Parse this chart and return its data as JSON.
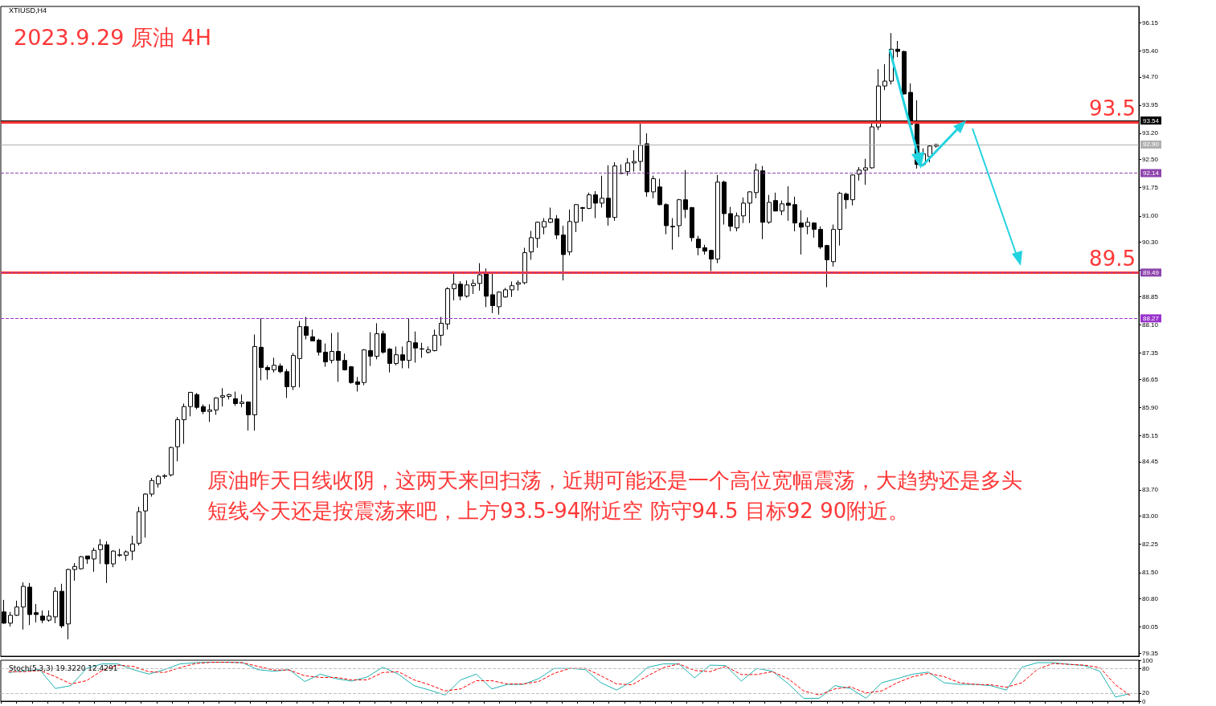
{
  "chart_data": [
    {
      "type": "candlestick",
      "title": "2023.9.29 原油 4H",
      "subtitle": "XTIUSD,H4",
      "annotations": [
        "原油昨天日线收阴，这两天来回扫荡，近期可能还是一个高位宽幅震荡，大趋势还是多头",
        "短线今天还是按震荡来吧，上方93.5-94附近空 防守94.5 目标92 90附近。"
      ],
      "categories": [
        null,
        null,
        null,
        null,
        null,
        null,
        null,
        null,
        null,
        null,
        null,
        null,
        null,
        null,
        null,
        null,
        null,
        null,
        null,
        null,
        null,
        null,
        null,
        null,
        null,
        null,
        null,
        null,
        null,
        null,
        null,
        null,
        null,
        null,
        null,
        null,
        null,
        null,
        null,
        null,
        null,
        null,
        null,
        null,
        null,
        null,
        null,
        null,
        null,
        null,
        null,
        null,
        null,
        null,
        null,
        null,
        null,
        null,
        null,
        null,
        null,
        null,
        null,
        null,
        null,
        null,
        null,
        null,
        null,
        null,
        null,
        null,
        null,
        null,
        null,
        null,
        null,
        null,
        null,
        null,
        null,
        null,
        null,
        null,
        null,
        null,
        null,
        null,
        null,
        null,
        null,
        null,
        null,
        null,
        null,
        null,
        null,
        null,
        null,
        null,
        null,
        null,
        null,
        null,
        null,
        null,
        null,
        null,
        null,
        null,
        null,
        null,
        null,
        null,
        null,
        null,
        null,
        null,
        null,
        null,
        null,
        null,
        null,
        null,
        null,
        null,
        null,
        null,
        null,
        null,
        null,
        null,
        null,
        null,
        null,
        null,
        null,
        null,
        null,
        null,
        null,
        null,
        null,
        null,
        null,
        null,
        null,
        null,
        null,
        null,
        null,
        null,
        null,
        null,
        null,
        null,
        null,
        null,
        null,
        null,
        null,
        null,
        null,
        null,
        null,
        null,
        null,
        null,
        null,
        null,
        null,
        null,
        null,
        null,
        null,
        null,
        null
      ],
      "series": [
        {
          "color": "#000000",
          "ohlc": [
            [
              80.45,
              80.77,
              80.13,
              80.15
            ],
            [
              80.15,
              80.45,
              80.06,
              80.36
            ],
            [
              80.36,
              80.75,
              80.34,
              80.58
            ],
            [
              80.58,
              81.24,
              79.98,
              81.13
            ],
            [
              81.11,
              81.22,
              80.1,
              80.38
            ],
            [
              80.43,
              80.66,
              80.17,
              80.38
            ],
            [
              80.34,
              80.49,
              80.15,
              80.23
            ],
            [
              80.23,
              80.49,
              80.19,
              80.34
            ],
            [
              80.32,
              81.11,
              80.15,
              81.0
            ],
            [
              81.0,
              81.2,
              80.02,
              80.08
            ],
            [
              80.13,
              81.6,
              79.72,
              81.58
            ],
            [
              81.58,
              81.75,
              81.28,
              81.66
            ],
            [
              81.6,
              81.94,
              81.58,
              81.92
            ],
            [
              81.94,
              81.94,
              81.73,
              81.86
            ],
            [
              81.86,
              82.16,
              81.52,
              82.09
            ],
            [
              82.11,
              82.39,
              81.73,
              82.24
            ],
            [
              82.24,
              82.33,
              81.22,
              81.73
            ],
            [
              81.73,
              82.09,
              81.64,
              82.07
            ],
            [
              81.96,
              82.13,
              81.92,
              81.97
            ],
            [
              81.96,
              82.09,
              81.81,
              82.05
            ],
            [
              82.07,
              82.48,
              81.83,
              82.26
            ],
            [
              82.28,
              83.25,
              82.22,
              83.12
            ],
            [
              83.14,
              83.61,
              82.43,
              83.59
            ],
            [
              83.59,
              84.02,
              83.52,
              83.95
            ],
            [
              83.86,
              84.1,
              83.76,
              84.06
            ],
            [
              84.06,
              84.12,
              84.0,
              84.08
            ],
            [
              84.1,
              84.85,
              84.06,
              84.83
            ],
            [
              84.85,
              85.64,
              84.46,
              85.57
            ],
            [
              85.57,
              86.0,
              84.93,
              85.92
            ],
            [
              85.92,
              86.3,
              85.66,
              86.3
            ],
            [
              86.24,
              86.28,
              85.85,
              85.9
            ],
            [
              85.92,
              85.98,
              85.72,
              85.79
            ],
            [
              85.79,
              85.98,
              85.51,
              85.83
            ],
            [
              85.83,
              86.17,
              85.7,
              86.15
            ],
            [
              86.17,
              86.41,
              85.92,
              86.21
            ],
            [
              86.19,
              86.26,
              86.11,
              86.24
            ],
            [
              86.13,
              86.32,
              85.94,
              86.0
            ],
            [
              86.0,
              86.24,
              85.9,
              86.04
            ],
            [
              86.04,
              86.06,
              85.28,
              85.7
            ],
            [
              85.7,
              87.84,
              85.28,
              87.52
            ],
            [
              87.5,
              88.27,
              86.62,
              86.96
            ],
            [
              86.96,
              87.02,
              86.64,
              86.9
            ],
            [
              86.9,
              87.22,
              86.83,
              87.02
            ],
            [
              87.0,
              87.07,
              86.81,
              86.85
            ],
            [
              86.85,
              86.92,
              86.15,
              86.45
            ],
            [
              86.45,
              87.35,
              86.36,
              87.28
            ],
            [
              87.2,
              88.2,
              86.43,
              88.05
            ],
            [
              88.05,
              88.31,
              87.71,
              87.82
            ],
            [
              87.78,
              87.97,
              87.66,
              87.67
            ],
            [
              87.69,
              87.73,
              87.28,
              87.37
            ],
            [
              87.37,
              87.6,
              86.98,
              87.11
            ],
            [
              87.15,
              87.88,
              87.07,
              87.39
            ],
            [
              87.39,
              87.9,
              86.58,
              87.15
            ],
            [
              87.15,
              87.33,
              86.88,
              86.9
            ],
            [
              86.98,
              87.0,
              86.53,
              86.56
            ],
            [
              86.58,
              86.71,
              86.32,
              86.51
            ],
            [
              86.56,
              87.45,
              86.49,
              87.43
            ],
            [
              87.41,
              87.9,
              87.0,
              87.26
            ],
            [
              87.26,
              88.14,
              87.18,
              87.86
            ],
            [
              87.86,
              87.94,
              87.33,
              87.37
            ],
            [
              87.45,
              87.48,
              86.83,
              87.07
            ],
            [
              87.07,
              87.52,
              87.02,
              87.3
            ],
            [
              87.3,
              87.52,
              86.94,
              87.15
            ],
            [
              87.15,
              88.27,
              86.94,
              87.65
            ],
            [
              87.62,
              87.92,
              87.09,
              87.48
            ],
            [
              87.45,
              87.62,
              87.22,
              87.46
            ],
            [
              87.37,
              87.52,
              87.33,
              87.43
            ],
            [
              87.41,
              87.97,
              87.39,
              87.82
            ],
            [
              87.82,
              88.31,
              87.54,
              88.14
            ],
            [
              88.12,
              89.1,
              87.97,
              89.06
            ],
            [
              89.06,
              89.49,
              88.75,
              89.18
            ],
            [
              89.18,
              89.26,
              88.75,
              88.86
            ],
            [
              88.86,
              89.28,
              88.82,
              89.16
            ],
            [
              89.14,
              89.31,
              88.92,
              89.2
            ],
            [
              89.2,
              89.74,
              89.01,
              89.43
            ],
            [
              89.49,
              89.6,
              88.57,
              88.86
            ],
            [
              88.9,
              89.47,
              88.41,
              88.61
            ],
            [
              88.58,
              88.99,
              88.37,
              88.97
            ],
            [
              88.84,
              89.08,
              88.82,
              89.03
            ],
            [
              89.03,
              89.25,
              88.84,
              89.14
            ],
            [
              89.18,
              89.28,
              89.01,
              89.22
            ],
            [
              89.22,
              90.15,
              89.18,
              90.02
            ],
            [
              90.04,
              90.6,
              89.83,
              90.42
            ],
            [
              90.4,
              90.85,
              90.15,
              90.83
            ],
            [
              90.7,
              90.94,
              90.51,
              90.85
            ],
            [
              90.83,
              91.22,
              90.81,
              90.92
            ],
            [
              90.92,
              91.02,
              90.38,
              90.49
            ],
            [
              90.49,
              90.74,
              89.28,
              89.97
            ],
            [
              90.04,
              91.17,
              89.95,
              90.85
            ],
            [
              90.83,
              91.32,
              90.57,
              91.3
            ],
            [
              91.2,
              91.24,
              90.85,
              91.22
            ],
            [
              91.2,
              91.62,
              91.18,
              91.56
            ],
            [
              91.56,
              91.66,
              90.94,
              91.34
            ],
            [
              91.34,
              92.07,
              91.22,
              91.47
            ],
            [
              91.47,
              92.35,
              90.74,
              90.96
            ],
            [
              90.96,
              92.43,
              90.87,
              92.33
            ],
            [
              92.14,
              92.37,
              92.12,
              92.13
            ],
            [
              92.18,
              92.54,
              92.07,
              92.41
            ],
            [
              92.41,
              92.75,
              92.18,
              92.45
            ],
            [
              92.45,
              93.54,
              92.2,
              92.88
            ],
            [
              92.92,
              93.2,
              91.51,
              91.64
            ],
            [
              91.64,
              92.07,
              91.47,
              91.99
            ],
            [
              91.77,
              91.99,
              91.28,
              91.3
            ],
            [
              91.3,
              91.34,
              90.51,
              90.74
            ],
            [
              90.72,
              90.94,
              90.1,
              90.71
            ],
            [
              90.74,
              91.45,
              90.44,
              91.43
            ],
            [
              91.43,
              92.22,
              90.94,
              91.17
            ],
            [
              91.22,
              91.24,
              90.32,
              90.42
            ],
            [
              90.38,
              90.47,
              89.95,
              90.15
            ],
            [
              90.15,
              90.23,
              89.97,
              90.06
            ],
            [
              90.08,
              90.1,
              89.53,
              89.85
            ],
            [
              89.85,
              92.09,
              89.74,
              91.9
            ],
            [
              91.9,
              91.94,
              90.77,
              91.06
            ],
            [
              91.06,
              91.24,
              90.59,
              90.72
            ],
            [
              90.68,
              91.09,
              90.59,
              91.0
            ],
            [
              91.0,
              91.49,
              90.81,
              91.34
            ],
            [
              91.34,
              91.66,
              90.81,
              91.64
            ],
            [
              91.62,
              92.39,
              91.47,
              92.22
            ],
            [
              92.2,
              92.33,
              90.38,
              90.83
            ],
            [
              90.83,
              91.56,
              90.79,
              91.36
            ],
            [
              91.41,
              91.62,
              91.12,
              91.13
            ],
            [
              91.13,
              91.41,
              91.02,
              91.32
            ],
            [
              91.34,
              91.79,
              90.87,
              91.28
            ],
            [
              91.3,
              91.51,
              90.59,
              90.81
            ],
            [
              90.81,
              91.15,
              89.97,
              90.7
            ],
            [
              90.72,
              90.96,
              90.51,
              90.83
            ],
            [
              90.81,
              90.83,
              90.42,
              90.64
            ],
            [
              90.64,
              90.72,
              90.12,
              90.17
            ],
            [
              90.21,
              90.23,
              89.1,
              89.83
            ],
            [
              89.78,
              90.77,
              89.65,
              90.64
            ],
            [
              90.64,
              91.64,
              90.21,
              91.6
            ],
            [
              91.58,
              91.62,
              91.19,
              91.43
            ],
            [
              91.43,
              92.11,
              91.28,
              92.09
            ],
            [
              92.11,
              92.3,
              91.94,
              92.22
            ],
            [
              92.22,
              92.52,
              91.83,
              92.28
            ],
            [
              92.28,
              93.48,
              92.26,
              93.37
            ],
            [
              93.37,
              94.91,
              93.29,
              94.46
            ],
            [
              94.46,
              95.04,
              94.35,
              94.59
            ],
            [
              94.59,
              95.87,
              94.5,
              95.44
            ],
            [
              95.44,
              95.66,
              95.23,
              95.38
            ],
            [
              95.38,
              95.4,
              94.23,
              94.25
            ],
            [
              94.29,
              94.53,
              93.43,
              93.44
            ],
            [
              93.44,
              94.08,
              92.26,
              92.37
            ],
            [
              92.37,
              92.8,
              92.33,
              92.65
            ],
            [
              92.58,
              92.88,
              92.43,
              92.86
            ],
            [
              92.86,
              92.92,
              92.82,
              92.9
            ],
            null,
            null,
            null,
            null,
            null,
            null,
            null,
            null,
            null,
            null,
            null,
            null,
            null,
            null,
            null,
            null,
            null,
            null,
            null,
            null,
            null,
            null,
            null,
            null,
            null,
            null,
            null,
            null,
            null,
            null,
            null
          ]
        }
      ],
      "ylim": [
        79.27,
        96.58
      ],
      "yticks": [
        {
          "value": 79.35,
          "label": "79.35"
        },
        {
          "value": 80.05,
          "label": "80.05"
        },
        {
          "value": 80.8,
          "label": "80.80"
        },
        {
          "value": 81.5,
          "label": "81.50"
        },
        {
          "value": 82.25,
          "label": "82.25"
        },
        {
          "value": 83,
          "label": "83.00"
        },
        {
          "value": 83.7,
          "label": "83.70"
        },
        {
          "value": 84.45,
          "label": "84.45"
        },
        {
          "value": 85.15,
          "label": "85.15"
        },
        {
          "value": 85.9,
          "label": "85.90"
        },
        {
          "value": 86.65,
          "label": "86.65"
        },
        {
          "value": 87.35,
          "label": "87.35"
        },
        {
          "value": 88.1,
          "label": "88.10"
        },
        {
          "value": 88.85,
          "label": "88.85"
        },
        {
          "value": 89.55,
          "label": null
        },
        {
          "value": 90.3,
          "label": "90.30"
        },
        {
          "value": 91,
          "label": "91.00"
        },
        {
          "value": 91.75,
          "label": "91.75"
        },
        {
          "value": 92.5,
          "label": "92.50"
        },
        {
          "value": 93.2,
          "label": "93.20"
        },
        {
          "value": 93.95,
          "label": "93.95"
        },
        {
          "value": 94.7,
          "label": "94.70"
        },
        {
          "value": 95.4,
          "label": "95.40"
        },
        {
          "value": 96.15,
          "label": "96.15"
        }
      ],
      "tick_labels": "y",
      "ref_lines": [
        {
          "axis": "y",
          "value": 93.5,
          "label": "93.5",
          "color": "#ff3838",
          "line_style": "solid"
        },
        {
          "axis": "y",
          "value": 89.5,
          "label": "89.5",
          "color": "#ff3838",
          "line_style": "solid"
        },
        {
          "axis": "y",
          "value": 93.54,
          "label": "93.54",
          "color": "#000000",
          "line_style": "solid"
        },
        {
          "axis": "y",
          "value": 92.9,
          "label": "92.90",
          "color": "#b0b0b0",
          "line_style": "solid"
        },
        {
          "axis": "y",
          "value": 92.14,
          "label": "92.14",
          "color": "#8e44ad",
          "line_style": "dashed"
        },
        {
          "axis": "y",
          "value": 89.49,
          "label": "89.49",
          "color": "#8e44ad",
          "line_style": "dashed"
        },
        {
          "axis": "y",
          "value": 88.27,
          "label": "88.27",
          "color": "#9932cc",
          "line_style": "dashed"
        }
      ]
    },
    {
      "type": "line",
      "title": "Stoch(5,3,3) 19.3220 12.4291",
      "categories": [
        null,
        null,
        null,
        null,
        null,
        null,
        null,
        null,
        null,
        null,
        null,
        null,
        null,
        null,
        null,
        null,
        null,
        null,
        null,
        null,
        null,
        null,
        null,
        null,
        null,
        null,
        null,
        null,
        null,
        null,
        null,
        null,
        null,
        null,
        null,
        null,
        null,
        null,
        null,
        null,
        null,
        null,
        null,
        null,
        null,
        null,
        null,
        null,
        null,
        null,
        null,
        null,
        null,
        null,
        null,
        null,
        null,
        null,
        null,
        null,
        null,
        null,
        null,
        null,
        null,
        null,
        null,
        null,
        null,
        null,
        null,
        null,
        null
      ],
      "series": [
        {
          "color": "#20b2b2",
          "line_style": "solid",
          "values": [
            70,
            74,
            77,
            31,
            38,
            80,
            91,
            91,
            77,
            66,
            77,
            91,
            94,
            95,
            95,
            94,
            77,
            73,
            77,
            48,
            66,
            55,
            49,
            59,
            83,
            66,
            38,
            27,
            15,
            52,
            66,
            30,
            41,
            41,
            55,
            80,
            80,
            77,
            45,
            27,
            49,
            83,
            91,
            91,
            57,
            88,
            87,
            49,
            80,
            73,
            43,
            7,
            7,
            38,
            31,
            7,
            45,
            55,
            66,
            71,
            45,
            41,
            41,
            38,
            27,
            83,
            94,
            94,
            90,
            87,
            73,
            10,
            19
          ]
        },
        {
          "color": "#ff0000",
          "line_style": "dashed",
          "values": [
            72,
            72,
            75,
            60,
            42,
            50,
            75,
            88,
            85,
            72,
            70,
            82,
            92,
            95,
            95,
            94,
            85,
            76,
            76,
            62,
            58,
            58,
            52,
            52,
            70,
            72,
            52,
            40,
            25,
            30,
            50,
            50,
            42,
            42,
            48,
            68,
            80,
            80,
            62,
            42,
            40,
            62,
            82,
            91,
            75,
            72,
            85,
            65,
            65,
            72,
            55,
            25,
            15,
            30,
            35,
            20,
            25,
            45,
            60,
            68,
            60,
            45,
            41,
            40,
            34,
            45,
            78,
            92,
            90,
            88,
            82,
            40,
            12
          ]
        }
      ],
      "marker": "none",
      "ylim": [
        0,
        100
      ],
      "yticks": [
        0,
        20,
        80,
        100
      ],
      "tick_labels": "y",
      "ref_lines": [
        {
          "axis": "y",
          "value": 80,
          "color": "#c0c0c0",
          "line_style": "dashed"
        },
        {
          "axis": "y",
          "value": 20,
          "color": "#c0c0c0",
          "line_style": "dashed"
        }
      ]
    }
  ]
}
